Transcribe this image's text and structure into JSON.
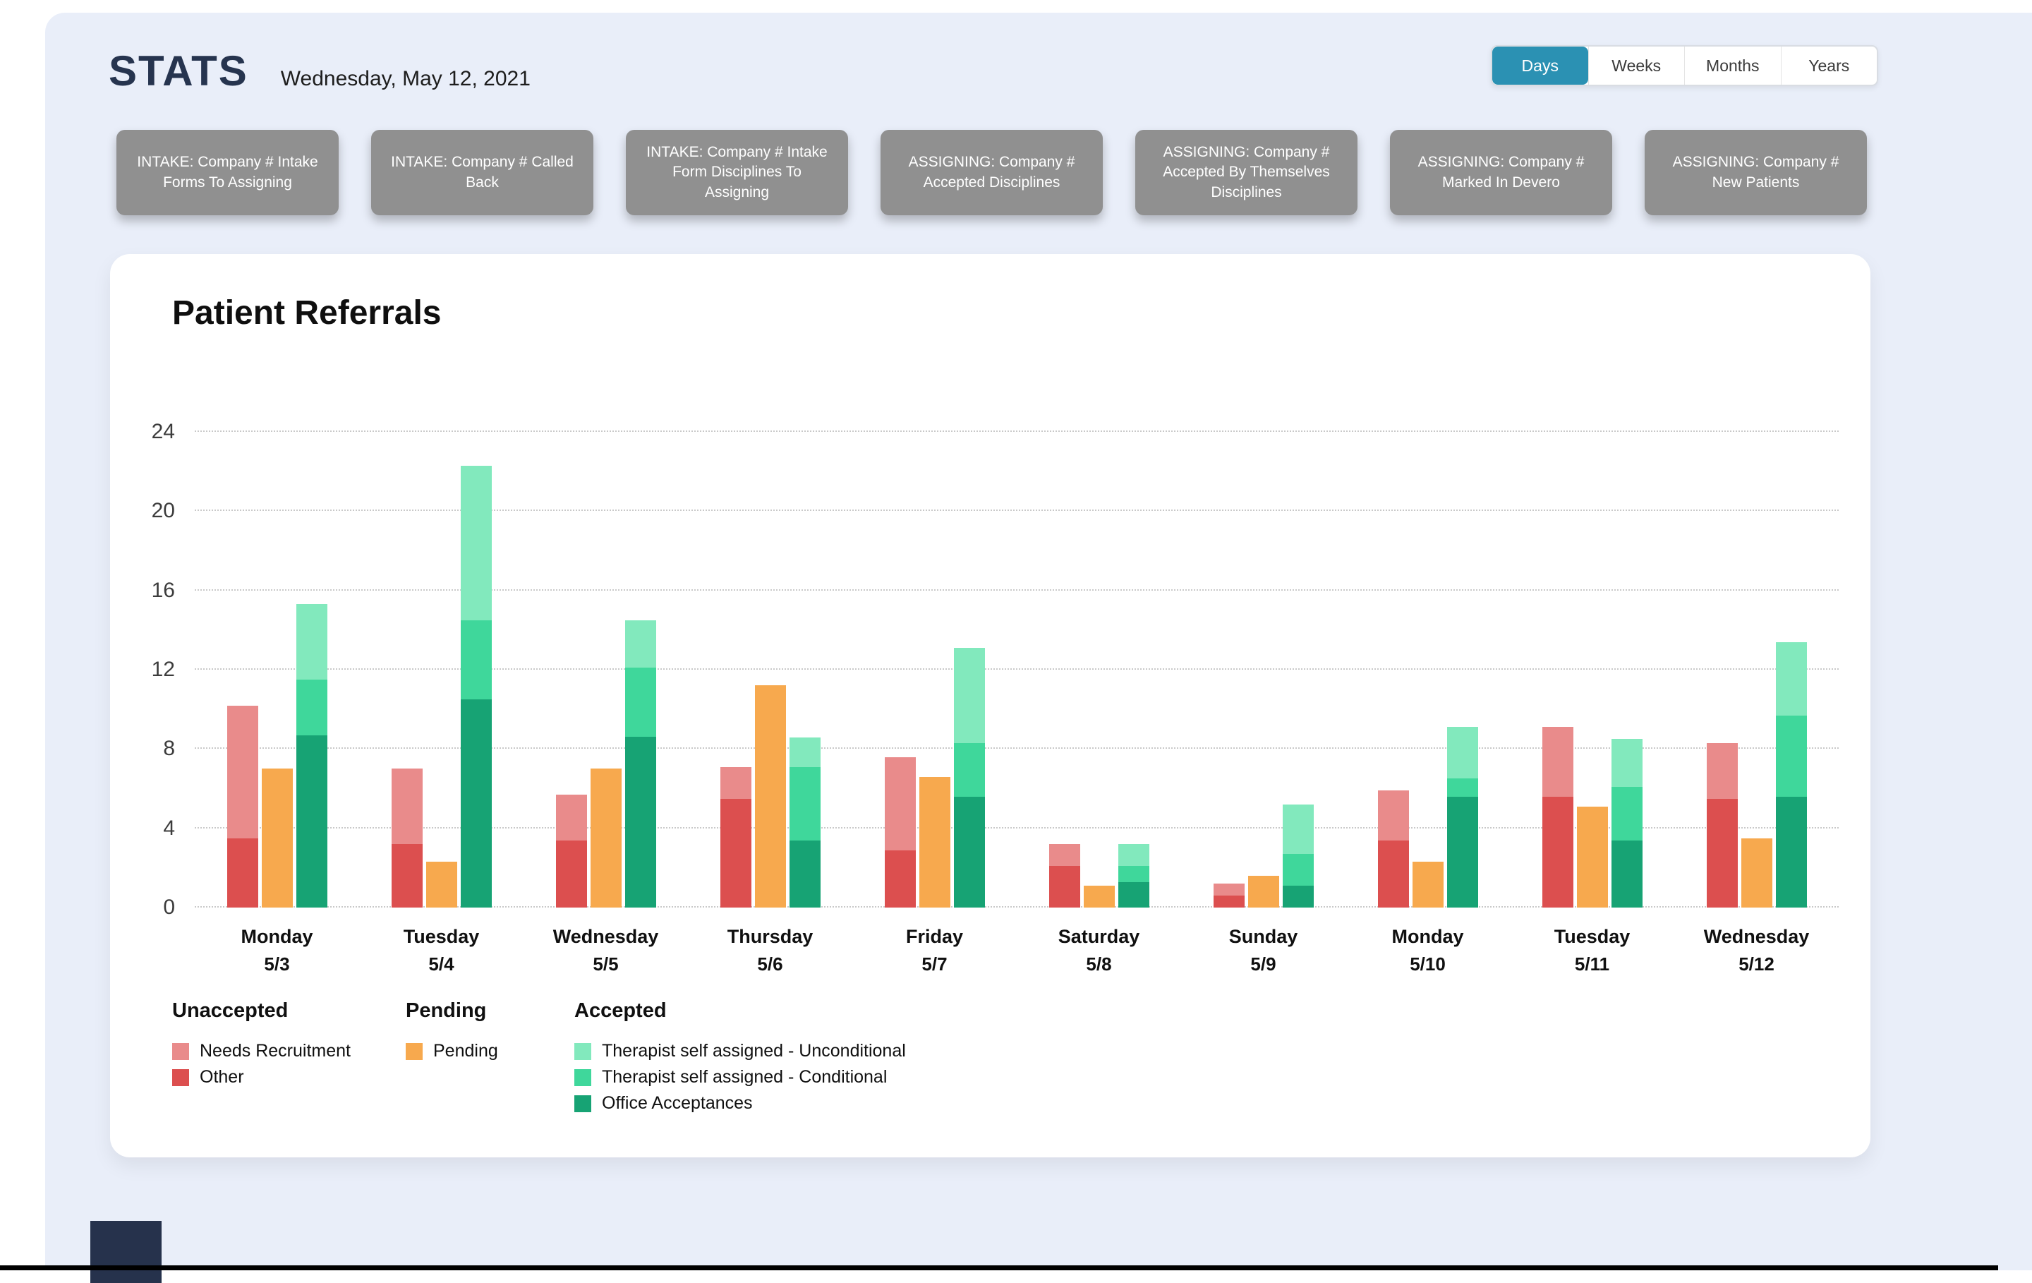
{
  "header": {
    "title": "STATS",
    "date": "Wednesday, May 12, 2021",
    "range_tabs": [
      {
        "label": "Days",
        "active": true
      },
      {
        "label": "Weeks",
        "active": false
      },
      {
        "label": "Months",
        "active": false
      },
      {
        "label": "Years",
        "active": false
      }
    ]
  },
  "stat_buttons": [
    "INTAKE: Company # Intake Forms To Assigning",
    "INTAKE: Company # Called Back",
    "INTAKE: Company # Intake Form Disciplines To Assigning",
    "ASSIGNING: Company # Accepted Disciplines",
    "ASSIGNING: Company # Accepted By Themselves Disciplines",
    "ASSIGNING: Company # Marked In Devero",
    "ASSIGNING: Company # New Patients"
  ],
  "colors": {
    "accent_teal": "#2b91b3",
    "stat_button_gray": "#909090",
    "page_background": "#e9eef9",
    "navy": "#26324c"
  },
  "chart_data": {
    "type": "bar",
    "title": "Patient Referrals",
    "ylim": [
      0,
      24
    ],
    "y_ticks": [
      0,
      4,
      8,
      12,
      16,
      20,
      24
    ],
    "grid": "horizontal-dotted",
    "legend_position": "bottom",
    "stack_order": [
      "unaccepted",
      "pending",
      "accepted"
    ],
    "categories": [
      {
        "day": "Monday",
        "date": "5/3"
      },
      {
        "day": "Tuesday",
        "date": "5/4"
      },
      {
        "day": "Wednesday",
        "date": "5/5"
      },
      {
        "day": "Thursday",
        "date": "5/6"
      },
      {
        "day": "Friday",
        "date": "5/7"
      },
      {
        "day": "Saturday",
        "date": "5/8"
      },
      {
        "day": "Sunday",
        "date": "5/9"
      },
      {
        "day": "Monday",
        "date": "5/10"
      },
      {
        "day": "Tuesday",
        "date": "5/11"
      },
      {
        "day": "Wednesday",
        "date": "5/12"
      }
    ],
    "series": [
      {
        "name": "Other",
        "stack": "unaccepted",
        "color": "#dc4f4f",
        "values": [
          3.5,
          3.2,
          3.4,
          5.5,
          2.9,
          2.1,
          0.6,
          3.4,
          5.6,
          5.5
        ]
      },
      {
        "name": "Needs Recruitment",
        "stack": "unaccepted",
        "color": "#e98b8b",
        "values": [
          6.7,
          3.8,
          2.3,
          1.6,
          4.7,
          1.1,
          0.6,
          2.5,
          3.5,
          2.8
        ]
      },
      {
        "name": "Pending",
        "stack": "pending",
        "color": "#f7a94e",
        "values": [
          7.0,
          2.3,
          7.0,
          11.2,
          6.6,
          1.1,
          1.6,
          2.3,
          5.1,
          3.5
        ]
      },
      {
        "name": "Office Acceptances",
        "stack": "accepted",
        "color": "#17a374",
        "values": [
          8.7,
          10.5,
          8.6,
          3.4,
          5.6,
          1.3,
          1.1,
          5.6,
          3.4,
          5.6
        ]
      },
      {
        "name": "Therapist self assigned - Conditional",
        "stack": "accepted",
        "color": "#3fd79b",
        "values": [
          2.8,
          4.0,
          3.5,
          3.7,
          2.7,
          0.8,
          1.6,
          0.9,
          2.7,
          4.1
        ]
      },
      {
        "name": "Therapist self assigned - Unconditional",
        "stack": "accepted",
        "color": "#82e9bd",
        "values": [
          3.8,
          7.8,
          2.4,
          1.5,
          4.8,
          1.1,
          2.5,
          2.6,
          2.4,
          3.7
        ]
      }
    ],
    "legend": {
      "columns": [
        {
          "title": "Unaccepted",
          "items": [
            {
              "label": "Needs Recruitment",
              "color": "#e98b8b"
            },
            {
              "label": "Other",
              "color": "#dc4f4f"
            }
          ]
        },
        {
          "title": "Pending",
          "items": [
            {
              "label": "Pending",
              "color": "#f7a94e"
            }
          ]
        },
        {
          "title": "Accepted",
          "items": [
            {
              "label": "Therapist self assigned - Unconditional",
              "color": "#82e9bd"
            },
            {
              "label": "Therapist self assigned - Conditional",
              "color": "#3fd79b"
            },
            {
              "label": "Office Acceptances",
              "color": "#17a374"
            }
          ]
        }
      ]
    }
  }
}
